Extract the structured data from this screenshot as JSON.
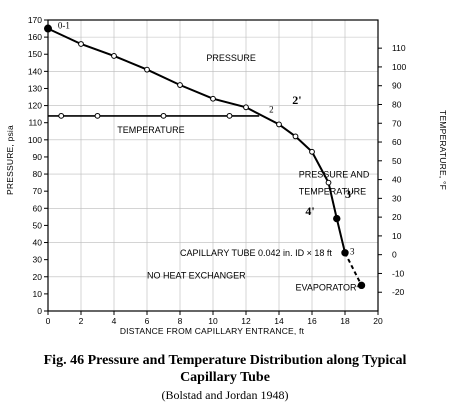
{
  "chart_data": {
    "type": "line",
    "xlabel": "DISTANCE FROM CAPILLARY ENTRANCE, ft",
    "ylabel_left": "PRESSURE, psia",
    "ylabel_right": "TEMPERATURE, °F",
    "xlim": [
      0,
      20
    ],
    "ylim_left": [
      0,
      170
    ],
    "ylim_right": [
      -30,
      125
    ],
    "x_ticks": [
      "0",
      "2",
      "4",
      "6",
      "8",
      "10",
      "12",
      "14",
      "16",
      "18",
      "20"
    ],
    "y_ticks_left": [
      "0",
      "10",
      "20",
      "30",
      "40",
      "50",
      "60",
      "70",
      "80",
      "90",
      "100",
      "110",
      "120",
      "130",
      "140",
      "150",
      "160",
      "170"
    ],
    "y_ticks_right": [
      "-20",
      "-10",
      "0",
      "10",
      "20",
      "30",
      "40",
      "50",
      "60",
      "70",
      "80",
      "90",
      "100",
      "110"
    ],
    "grid": true,
    "series": [
      {
        "name": "PRESSURE",
        "x": [
          0,
          2,
          4,
          6,
          8,
          10,
          12,
          13,
          14,
          15,
          16,
          17,
          17.5,
          18,
          19
        ],
        "y": [
          165,
          156,
          149,
          141,
          132,
          124,
          119,
          114,
          109,
          102,
          93,
          75,
          54,
          34,
          15
        ],
        "markers_x": [
          2,
          4,
          6,
          8,
          10,
          12,
          14,
          15,
          16,
          17,
          17.5,
          18,
          19
        ]
      },
      {
        "name": "TEMPERATURE",
        "x": [
          0,
          1,
          3,
          5,
          7,
          9,
          11,
          12.8
        ],
        "y": [
          114,
          114,
          114,
          114,
          114,
          114,
          114,
          114
        ],
        "markers_x": [
          0.8,
          3,
          7,
          11
        ]
      }
    ],
    "point_labels": [
      {
        "text": "0-1",
        "x": 0.6,
        "y": 165
      },
      {
        "text": "2",
        "x": 13.4,
        "y": 116
      },
      {
        "text": "3",
        "x": 18.3,
        "y": 33
      },
      {
        "text": "4",
        "x": 18.7,
        "y": 13
      }
    ],
    "bold_point_labels": [
      {
        "text": "2'",
        "x": 14.8,
        "y": 121
      },
      {
        "text": "3'",
        "x": 18.0,
        "y": 66
      },
      {
        "text": "4'",
        "x": 15.6,
        "y": 56
      }
    ],
    "annotations": [
      {
        "text": "PRESSURE",
        "x": 9.6,
        "y": 146
      },
      {
        "text": "TEMPERATURE",
        "x": 4.2,
        "y": 104
      },
      {
        "text": "PRESSURE AND",
        "x": 15.2,
        "y": 78
      },
      {
        "text": "TEMPERATURE",
        "x": 15.2,
        "y": 68
      },
      {
        "text": "CAPILLARY TUBE 0.042 in. ID × 18 ft",
        "x": 8.0,
        "y": 32
      },
      {
        "text": "NO HEAT EXCHANGER",
        "x": 6.0,
        "y": 19
      },
      {
        "text": "EVAPORATOR",
        "x": 15.0,
        "y": 12
      }
    ]
  },
  "caption": {
    "line1": "Fig. 46    Pressure and Temperature Distribution along Typical",
    "line2": "Capillary Tube",
    "line3": "(Bolstad and Jordan 1948)"
  }
}
